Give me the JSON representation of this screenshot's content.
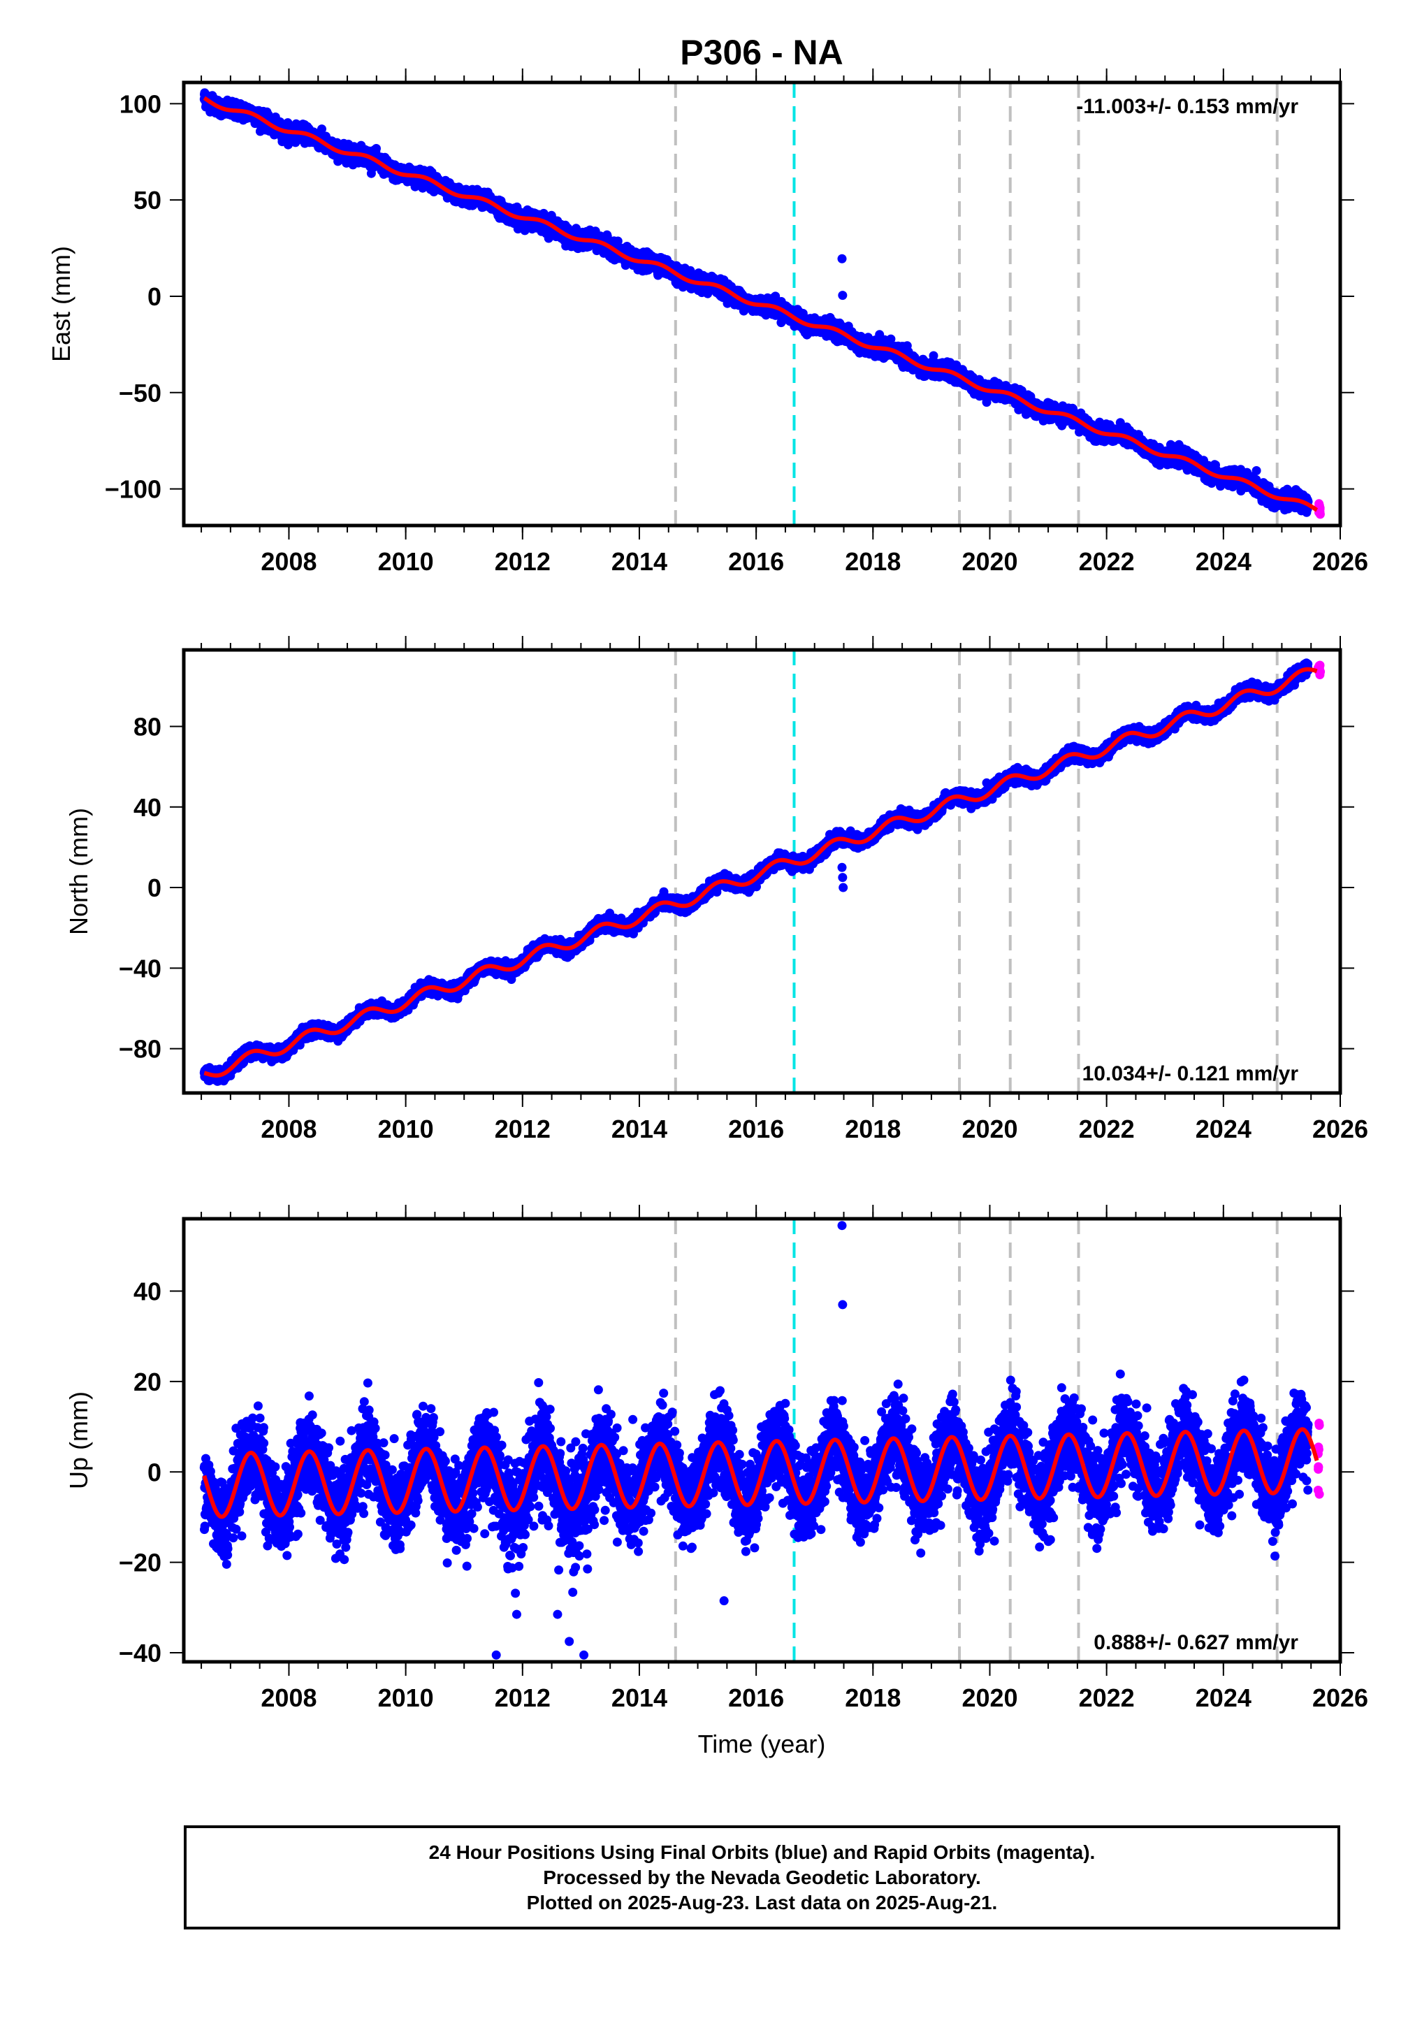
{
  "title": "P306 - NA",
  "colors": {
    "final_orbits": "#0000ff",
    "rapid_orbits": "#ff00ff",
    "model": "#ff0000",
    "event_line": "#c0c0c0",
    "antenna_change_line": "#00e5e5",
    "frame": "#000000"
  },
  "x_axis": {
    "label": "Time (year)",
    "range": [
      2006.2,
      2026.0
    ],
    "ticks": [
      "2008",
      "2010",
      "2012",
      "2014",
      "2016",
      "2018",
      "2020",
      "2022",
      "2024",
      "2026"
    ]
  },
  "chart_data": [
    {
      "type": "scatter",
      "component": "east",
      "ylabel": "East (mm)",
      "ylim": [
        -119,
        111
      ],
      "yticks": [
        100,
        50,
        0,
        -50,
        -100
      ],
      "ytick_labels": [
        "100",
        "50",
        "0",
        "−50",
        "−100"
      ],
      "rate_text": "-11.003+/- 0.153 mm/yr",
      "rate_position": "top-right",
      "trend": {
        "start": [
          2006.55,
          102.5
        ],
        "end": [
          2025.6,
          -111.0
        ]
      },
      "seasonal_amplitude_mm": 1.5,
      "scatter_mm": 2.0,
      "outliers": [
        [
          2017.47,
          19.5
        ],
        [
          2017.48,
          0.5
        ]
      ],
      "rapid_orbits_span": [
        2025.45,
        2025.64
      ],
      "event_lines": [
        2014.62,
        2019.48,
        2020.35,
        2021.52,
        2024.92
      ],
      "antenna_change_lines": [
        2016.65
      ]
    },
    {
      "type": "scatter",
      "component": "north",
      "ylabel": "North (mm)",
      "ylim": [
        -102,
        118
      ],
      "yticks": [
        80,
        40,
        0,
        -40,
        -80
      ],
      "ytick_labels": [
        "80",
        "40",
        "0",
        "−40",
        "−80"
      ],
      "rate_text": "10.034+/- 0.121 mm/yr",
      "rate_position": "bottom-right",
      "trend": {
        "start": [
          2006.55,
          -93.0
        ],
        "end": [
          2025.6,
          107.5
        ]
      },
      "seasonal_amplitude_mm": 3.0,
      "scatter_mm": 1.5,
      "outliers": [
        [
          2017.47,
          10.0
        ],
        [
          2017.48,
          5.0
        ],
        [
          2017.49,
          0.0
        ]
      ],
      "rapid_orbits_span": [
        2025.45,
        2025.64
      ],
      "event_lines": [
        2014.62,
        2019.48,
        2020.35,
        2021.52,
        2024.92
      ],
      "antenna_change_lines": [
        2016.65
      ]
    },
    {
      "type": "scatter",
      "component": "up",
      "ylabel": "Up (mm)",
      "ylim": [
        -42,
        56
      ],
      "yticks": [
        40,
        20,
        0,
        -20,
        -40
      ],
      "ytick_labels": [
        "40",
        "20",
        "0",
        "−20",
        "−40"
      ],
      "rate_text": "0.888+/- 0.627 mm/yr",
      "rate_position": "bottom-right",
      "trend": {
        "start": [
          2006.55,
          -3.0
        ],
        "end": [
          2025.6,
          2.5
        ]
      },
      "seasonal_amplitude_mm": 7.0,
      "scatter_mm": 4.5,
      "outliers": [
        [
          2017.47,
          54.5
        ],
        [
          2017.48,
          37.0
        ],
        [
          2011.55,
          -40.5
        ],
        [
          2013.05,
          -40.5
        ],
        [
          2012.8,
          -37.5
        ],
        [
          2012.6,
          -31.5
        ],
        [
          2015.45,
          -28.5
        ],
        [
          2011.9,
          -31.5
        ]
      ],
      "rapid_orbits_span": [
        2025.45,
        2025.64
      ],
      "event_lines": [
        2014.62,
        2019.48,
        2020.35,
        2021.52,
        2024.92
      ],
      "antenna_change_lines": [
        2016.65
      ]
    }
  ],
  "caption": {
    "line1": "24 Hour Positions Using Final Orbits (blue) and Rapid Orbits (magenta).",
    "line2": "Processed by the Nevada Geodetic Laboratory.",
    "line3": "Plotted on 2025-Aug-23. Last data on 2025-Aug-21."
  }
}
